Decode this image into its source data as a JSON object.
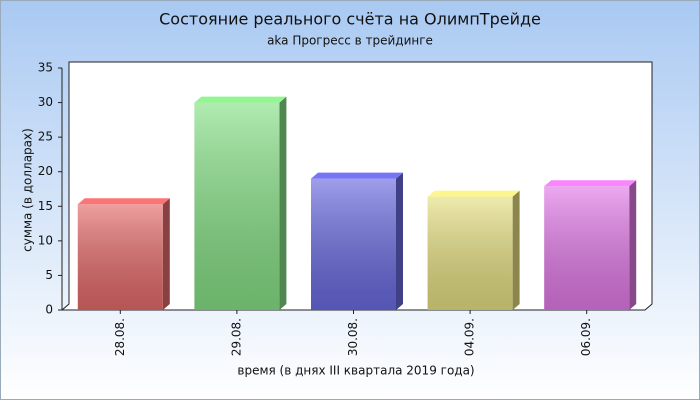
{
  "chart_data": {
    "type": "bar",
    "title": "Состояние реального счёта на ОлимпТрейде",
    "subtitle": "aka Прогресс в трейдинге",
    "x_label": "время (в днях III квартала 2019 года)",
    "y_label": "сумма (в долларах)",
    "categories": [
      "28.08.",
      "29.08.",
      "30.08.",
      "04.09.",
      "06.09."
    ],
    "values": [
      15.3,
      30,
      19,
      16.4,
      17.9
    ],
    "colors": [
      "#e56a6a",
      "#86e086",
      "#6a6ae0",
      "#e6e082",
      "#e27ae8"
    ],
    "ylim": [
      0,
      35
    ],
    "yticks": [
      0,
      5,
      10,
      15,
      20,
      25,
      30,
      35
    ]
  }
}
